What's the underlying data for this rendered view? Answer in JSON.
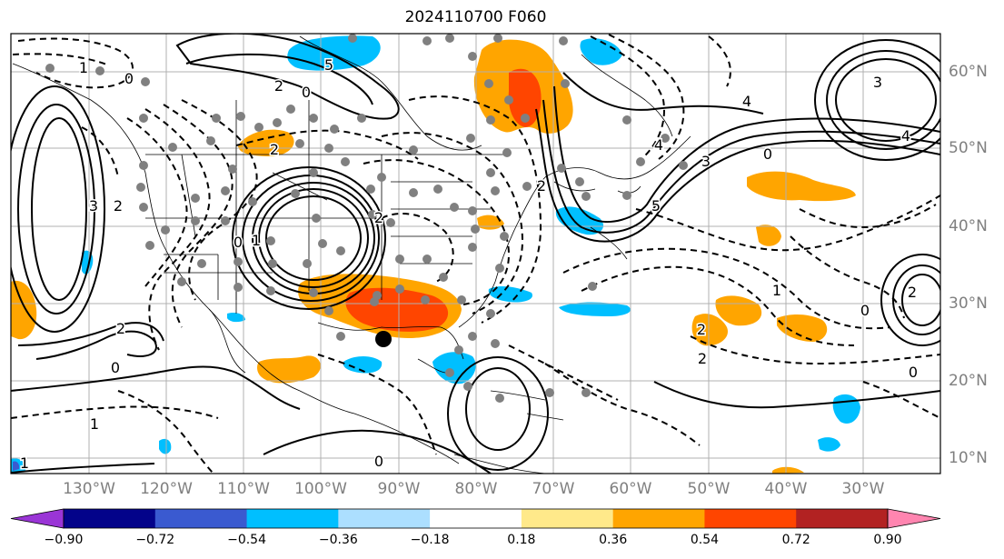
{
  "title": "2024110700 F060",
  "lon_labels": [
    "130°W",
    "120°W",
    "110°W",
    "100°W",
    "90°W",
    "80°W",
    "70°W",
    "60°W",
    "50°W",
    "40°W",
    "30°W"
  ],
  "lat_labels": [
    "60°N",
    "50°N",
    "40°N",
    "30°N",
    "20°N",
    "10°N"
  ],
  "colorbar": {
    "levels": [
      "−0.90",
      "−0.72",
      "−0.54",
      "−0.36",
      "−0.18",
      "0.18",
      "0.36",
      "0.54",
      "0.72",
      "0.90"
    ],
    "colors": [
      "#9a35d6",
      "#03038a",
      "#3a5ad0",
      "#00bfff",
      "#acdfff",
      "#ffffff",
      "#ffe98a",
      "#ffa500",
      "#ff4500",
      "#b22222",
      "#ff85b0"
    ]
  },
  "contour_labels": [
    "1",
    "0",
    "2",
    "5",
    "4",
    "3",
    "2",
    "0",
    "1",
    "4",
    "3",
    "5",
    "4",
    "0",
    "2",
    "2",
    "0",
    "3",
    "1",
    "2",
    "2",
    "0",
    "0",
    "2",
    "2",
    "0",
    "1",
    "0",
    "2",
    "1"
  ],
  "fill_colors": {
    "orange": "#ffa500",
    "red": "#ff4500",
    "cyan": "#00bfff",
    "blue": "#3a5ad0"
  }
}
